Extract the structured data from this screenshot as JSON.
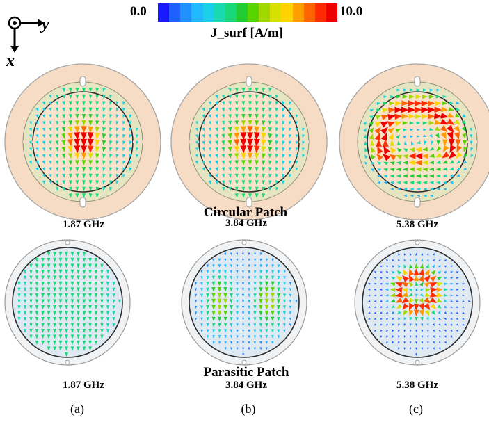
{
  "axes": {
    "out_of_plane_symbol": "⊙",
    "y_label": "y",
    "x_label": "x"
  },
  "colorbar": {
    "min_label": "0.0",
    "max_label": "10.0",
    "quantity_label": "J_surf [A/m]",
    "colors": [
      "#1a1aff",
      "#2060ff",
      "#1e90ff",
      "#22b8ff",
      "#1ad0e6",
      "#19d9b0",
      "#18d87a",
      "#22cc33",
      "#58d400",
      "#a0d800",
      "#d8e000",
      "#ffd200",
      "#ff9d00",
      "#ff6400",
      "#ff2a00",
      "#ee0000"
    ]
  },
  "rows": [
    {
      "section_title": "Circular Patch",
      "panels": [
        {
          "frequency": "1.87 GHz",
          "pattern": "center"
        },
        {
          "frequency": "3.84 GHz",
          "pattern": "center"
        },
        {
          "frequency": "5.38 GHz",
          "pattern": "tm21"
        }
      ]
    },
    {
      "section_title": "Parasitic Patch",
      "panels": [
        {
          "frequency": "1.87 GHz",
          "pattern": "uniform"
        },
        {
          "frequency": "3.84 GHz",
          "pattern": "lobes"
        },
        {
          "frequency": "5.38 GHz",
          "pattern": "upper"
        }
      ]
    }
  ],
  "subfigure_labels": [
    "(a)",
    "(b)",
    "(c)"
  ]
}
